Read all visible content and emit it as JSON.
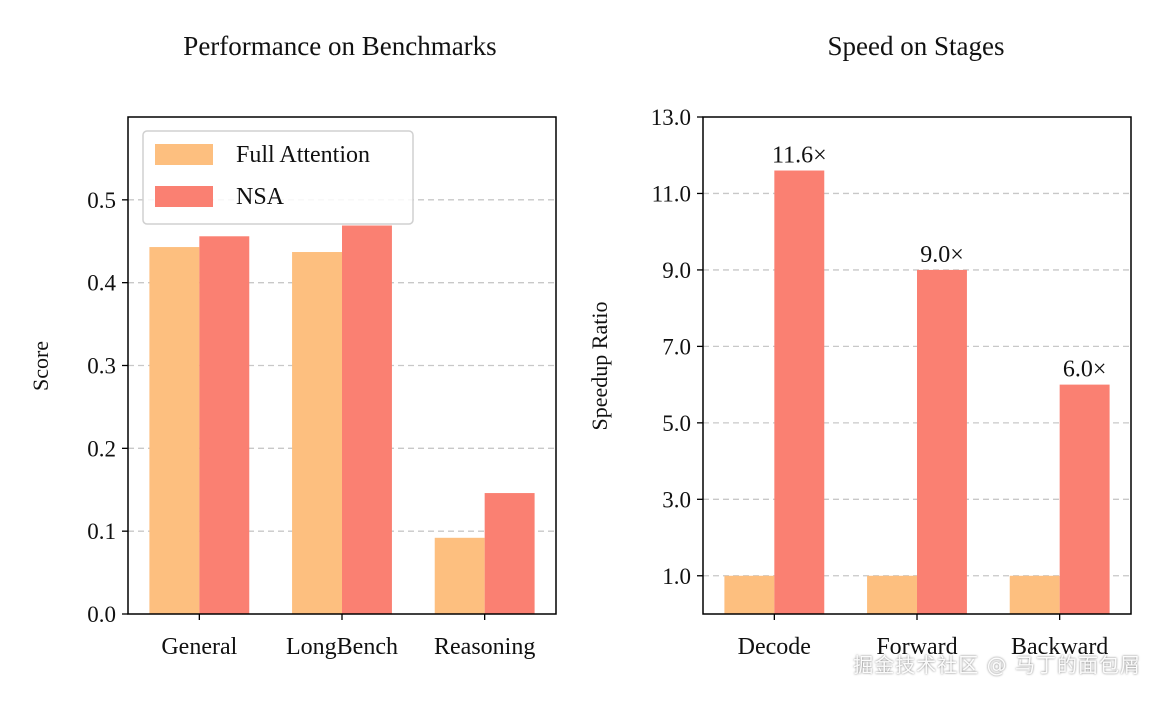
{
  "colors": {
    "full_attention": "#fdbf7f",
    "nsa": "#fa8072",
    "grid": "#c8c8c8"
  },
  "watermark": "掘金技术社区 @ 马丁的面包屑",
  "chart_data": [
    {
      "type": "bar",
      "title": "Performance on Benchmarks",
      "xlabel": "",
      "ylabel": "Score",
      "categories": [
        "General",
        "LongBench",
        "Reasoning"
      ],
      "series": [
        {
          "name": "Full Attention",
          "values": [
            0.443,
            0.437,
            0.092
          ]
        },
        {
          "name": "NSA",
          "values": [
            0.456,
            0.469,
            0.146
          ]
        }
      ],
      "ylim": [
        0,
        0.6
      ],
      "yticks": [
        "0.0",
        "0.1",
        "0.2",
        "0.3",
        "0.4",
        "0.5"
      ],
      "grid": "horizontal dashed",
      "legend_position": "top-left"
    },
    {
      "type": "bar",
      "title": "Speed on Stages",
      "xlabel": "",
      "ylabel": "Speedup Ratio",
      "categories": [
        "Decode",
        "Forward",
        "Backward"
      ],
      "series": [
        {
          "name": "Full Attention",
          "values": [
            1.0,
            1.0,
            1.0
          ]
        },
        {
          "name": "NSA",
          "values": [
            11.6,
            9.0,
            6.0
          ]
        }
      ],
      "data_labels": [
        "11.6×",
        "9.0×",
        "6.0×"
      ],
      "ylim": [
        0,
        13
      ],
      "yticks": [
        "1.0",
        "3.0",
        "5.0",
        "7.0",
        "9.0",
        "11.0",
        "13.0"
      ],
      "grid": "horizontal dashed"
    }
  ]
}
